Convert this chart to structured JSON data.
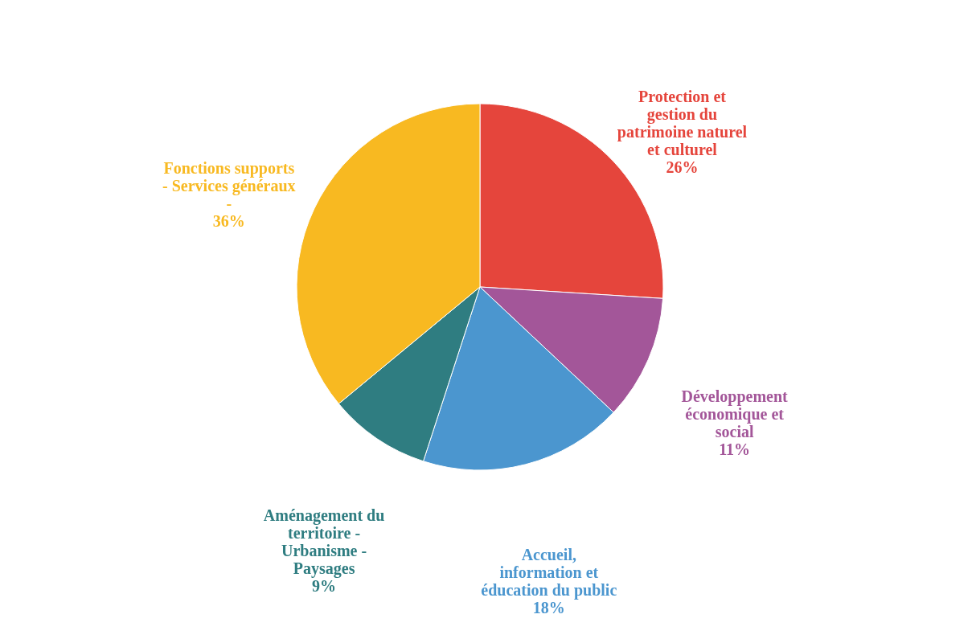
{
  "chart_data": {
    "type": "pie",
    "categories": [
      "Protection et\ngestion du\npatrimoine naturel\net culturel",
      "Développement\néconomique et\nsocial",
      "Accueil,\ninformation et\néducation du public",
      "Aménagement du\nterritoire -\nUrbanisme -\nPaysages",
      "Fonctions supports\n- Services généraux\n-"
    ],
    "values": [
      26,
      11,
      18,
      9,
      36
    ],
    "value_labels": [
      "26%",
      "11%",
      "18%",
      "9%",
      "36%"
    ],
    "colors": [
      "#e5453c",
      "#a35699",
      "#4b96cf",
      "#2f7d81",
      "#f8b921"
    ],
    "legend": false
  }
}
